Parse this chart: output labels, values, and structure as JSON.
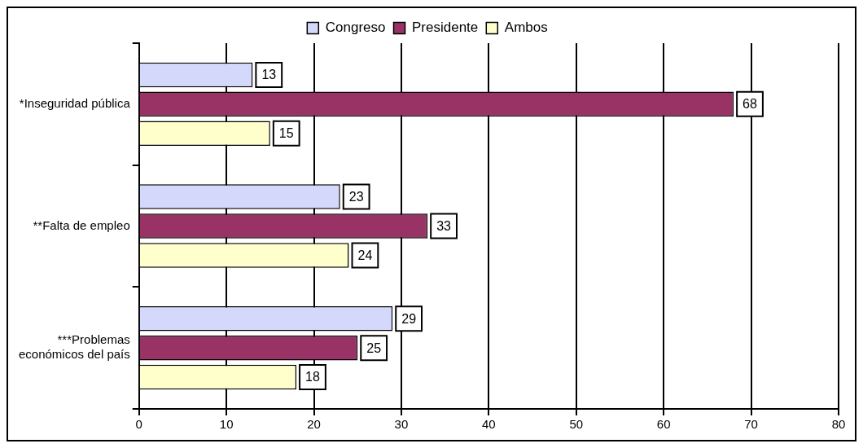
{
  "chart_data": {
    "type": "bar",
    "orientation": "horizontal",
    "categories": [
      "*Inseguridad pública",
      "**Falta de empleo",
      "***Problemas económicos del país"
    ],
    "series": [
      {
        "name": "Congreso",
        "color": "#d4d8fa",
        "values": [
          13,
          23,
          29
        ]
      },
      {
        "name": "Presidente",
        "color": "#993366",
        "values": [
          68,
          33,
          25
        ]
      },
      {
        "name": "Ambos",
        "color": "#ffffcc",
        "values": [
          15,
          24,
          18
        ]
      }
    ],
    "xlim": [
      0,
      80
    ],
    "xticks": [
      0,
      10,
      20,
      30,
      40,
      50,
      60,
      70,
      80
    ],
    "grid": "x",
    "legend": "top",
    "data_labels": true
  }
}
